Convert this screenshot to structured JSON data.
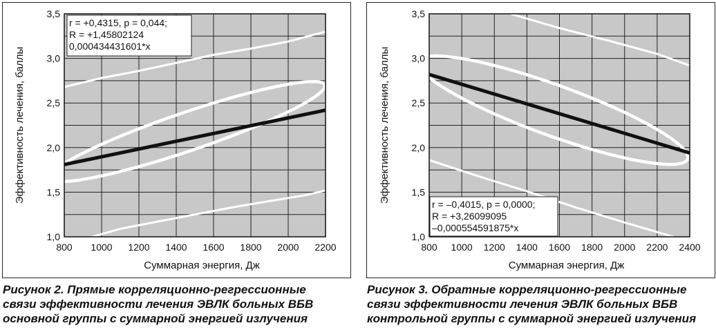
{
  "chart_data": [
    {
      "type": "scatter",
      "xlabel": "Суммарная энергия, Дж",
      "ylabel": "Эффективность лечения, баллы",
      "xlim": [
        800,
        2200
      ],
      "ylim": [
        1.0,
        3.5
      ],
      "xticks": [
        800,
        1000,
        1200,
        1400,
        1600,
        1800,
        2000,
        2200
      ],
      "yticks": [
        "1,0",
        "1,5",
        "2,0",
        "2,5",
        "3,0",
        "3,5"
      ],
      "ytick_values": [
        1.0,
        1.5,
        2.0,
        2.5,
        3.0,
        3.5
      ],
      "grid": true,
      "background": "#c8c8c8",
      "stats": [
        "r = +0,4315, p = 0,044;",
        "R = +1,45802124",
        "0,000434431601*x"
      ],
      "stats_placement": "top-left",
      "regression": {
        "points": [
          [
            800,
            1.81
          ],
          [
            2200,
            2.42
          ]
        ],
        "color": "#111111"
      },
      "confidence_upper": {
        "points": [
          [
            800,
            2.68
          ],
          [
            1000,
            2.78
          ],
          [
            1200,
            2.86
          ],
          [
            1400,
            2.95
          ],
          [
            1600,
            3.04
          ],
          [
            1800,
            3.11
          ],
          [
            2000,
            3.19
          ],
          [
            2200,
            3.3
          ]
        ],
        "color": "#ffffff"
      },
      "confidence_lower": {
        "points": [
          [
            950,
            1.0
          ],
          [
            1100,
            1.09
          ],
          [
            1300,
            1.17
          ],
          [
            1500,
            1.25
          ],
          [
            1700,
            1.33
          ],
          [
            1900,
            1.4
          ],
          [
            2100,
            1.47
          ],
          [
            2200,
            1.52
          ]
        ],
        "color": "#ffffff"
      },
      "ellipse": {
        "center": [
          1460,
          2.18
        ],
        "semi_axes_deg": [
          [
            720,
            1.1
          ],
          [
            160,
            -0.22
          ]
        ],
        "color": "#ffffff"
      }
    },
    {
      "type": "scatter",
      "xlabel": "Суммарная энергия, Дж",
      "ylabel": "Эффективность лечения, баллы",
      "xlim": [
        800,
        2400
      ],
      "ylim": [
        1.0,
        3.5
      ],
      "xticks": [
        800,
        1000,
        1200,
        1400,
        1600,
        1800,
        2000,
        2200,
        2400
      ],
      "yticks": [
        "1,0",
        "1,5",
        "2,0",
        "2,5",
        "3,0",
        "3,5"
      ],
      "ytick_values": [
        1.0,
        1.5,
        2.0,
        2.5,
        3.0,
        3.5
      ],
      "grid": true,
      "background": "#c8c8c8",
      "stats": [
        "r = –0,4015, p = 0,0000;",
        "R = +3,26099095",
        "–0,000554591875*x"
      ],
      "stats_placement": "bottom-left",
      "regression": {
        "points": [
          [
            800,
            2.82
          ],
          [
            2400,
            1.94
          ]
        ],
        "color": "#111111"
      },
      "confidence_upper": {
        "points": [
          [
            1300,
            3.5
          ],
          [
            1600,
            3.34
          ],
          [
            1900,
            3.2
          ],
          [
            2200,
            3.05
          ],
          [
            2400,
            2.92
          ]
        ],
        "color": "#ffffff"
      },
      "confidence_lower": {
        "points": [
          [
            800,
            1.86
          ],
          [
            1100,
            1.68
          ],
          [
            1400,
            1.51
          ],
          [
            1700,
            1.33
          ],
          [
            2000,
            1.16
          ],
          [
            2300,
            1.0
          ]
        ],
        "color": "#ffffff"
      },
      "ellipse": {
        "center": [
          1560,
          2.42
        ],
        "semi_axes_deg": [
          [
            800,
            -1.18
          ],
          [
            220,
            0.3
          ]
        ],
        "color": "#ffffff"
      }
    }
  ],
  "captions": [
    [
      "Рисунок 2.  Прямые корреляционно-регрессионные",
      "связи эффективности лечения ЭВЛК больных ВБВ",
      "основной группы с суммарной энергией излучения"
    ],
    [
      "Рисунок 3.  Обратные корреляционно-регрессионные",
      "связи эффективности лечения ЭВЛК больных ВБВ",
      "контрольной группы с суммарной энергией излучения"
    ]
  ]
}
